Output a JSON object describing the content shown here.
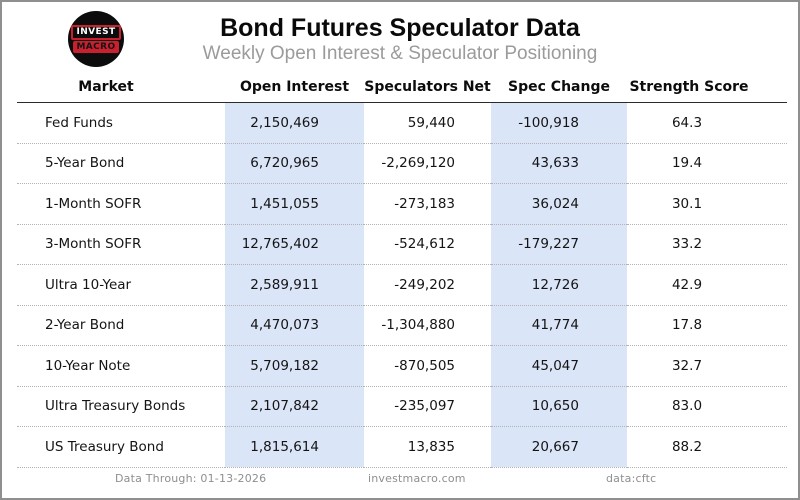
{
  "header": {
    "logo": {
      "line1": "INVEST",
      "line2": "MACRO"
    },
    "title": "Bond Futures Speculator Data",
    "subtitle": "Weekly Open Interest & Speculator Positioning"
  },
  "chart_data": {
    "type": "table",
    "title": "Bond Futures Speculator Data",
    "subtitle": "Weekly Open Interest & Speculator Positioning",
    "columns": [
      "Market",
      "Open Interest",
      "Speculators Net",
      "Spec Change",
      "Strength Score"
    ],
    "highlighted_columns": [
      "Open Interest",
      "Spec Change"
    ],
    "rows": [
      [
        "Fed Funds",
        "2,150,469",
        "59,440",
        "-100,918",
        "64.3"
      ],
      [
        "5-Year Bond",
        "6,720,965",
        "-2,269,120",
        "43,633",
        "19.4"
      ],
      [
        "1-Month SOFR",
        "1,451,055",
        "-273,183",
        "36,024",
        "30.1"
      ],
      [
        "3-Month SOFR",
        "12,765,402",
        "-524,612",
        "-179,227",
        "33.2"
      ],
      [
        "Ultra 10-Year",
        "2,589,911",
        "-249,202",
        "12,726",
        "42.9"
      ],
      [
        "2-Year Bond",
        "4,470,073",
        "-1,304,880",
        "41,774",
        "17.8"
      ],
      [
        "10-Year Note",
        "5,709,182",
        "-870,505",
        "45,047",
        "32.7"
      ],
      [
        "Ultra Treasury Bonds",
        "2,107,842",
        "-235,097",
        "10,650",
        "83.0"
      ],
      [
        "US Treasury Bond",
        "1,815,614",
        "13,835",
        "20,667",
        "88.2"
      ]
    ]
  },
  "footer": {
    "data_through": "Data Through: 01-13-2026",
    "website": "investmacro.com",
    "source": "data:cftc"
  },
  "colors": {
    "column_highlight": "#dbe5f8",
    "logo_red": "#c8202f",
    "subtitle_gray": "#9b9b9b"
  }
}
